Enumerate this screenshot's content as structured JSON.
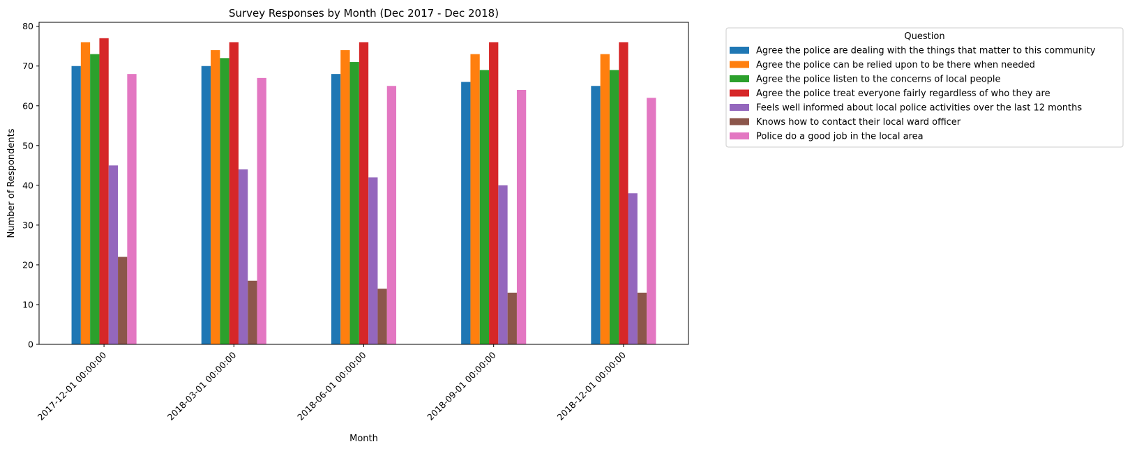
{
  "chart_data": {
    "type": "bar",
    "title": "Survey Responses by Month (Dec 2017 - Dec 2018)",
    "xlabel": "Month",
    "ylabel": "Number of Respondents",
    "ylim": [
      0,
      81
    ],
    "yticks": [
      0,
      10,
      20,
      30,
      40,
      50,
      60,
      70,
      80
    ],
    "categories": [
      "2017-12-01 00:00:00",
      "2018-03-01 00:00:00",
      "2018-06-01 00:00:00",
      "2018-09-01 00:00:00",
      "2018-12-01 00:00:00"
    ],
    "legend_title": "Question",
    "legend_position": "outside-top-right",
    "series": [
      {
        "name": "Agree the police are dealing with the things that matter to this community",
        "color": "#1f77b4",
        "values": [
          70,
          70,
          68,
          66,
          65
        ]
      },
      {
        "name": "Agree the police can be relied upon to be there when needed",
        "color": "#ff7f0e",
        "values": [
          76,
          74,
          74,
          73,
          73
        ]
      },
      {
        "name": "Agree the police listen to the concerns of local people",
        "color": "#2ca02c",
        "values": [
          73,
          72,
          71,
          69,
          69
        ]
      },
      {
        "name": "Agree the police treat everyone fairly regardless of who they are",
        "color": "#d62728",
        "values": [
          77,
          76,
          76,
          76,
          76
        ]
      },
      {
        "name": "Feels well informed about local police activities over the last 12 months",
        "color": "#9467bd",
        "values": [
          45,
          44,
          42,
          40,
          38
        ]
      },
      {
        "name": "Knows how to contact their local ward officer",
        "color": "#8c564b",
        "values": [
          22,
          16,
          14,
          13,
          13
        ]
      },
      {
        "name": "Police do a good job in the local area",
        "color": "#e377c2",
        "values": [
          68,
          67,
          65,
          64,
          62
        ]
      }
    ]
  }
}
